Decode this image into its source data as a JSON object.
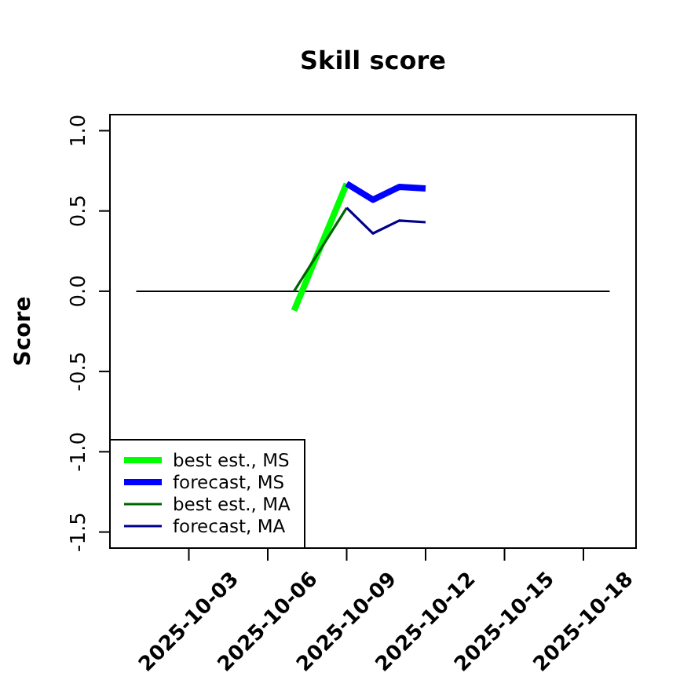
{
  "chart_data": {
    "type": "line",
    "title": "Skill score",
    "ylabel": "Score",
    "xlim": [
      "2025-09-30",
      "2025-10-20"
    ],
    "xticks": [
      "2025-10-03",
      "2025-10-06",
      "2025-10-09",
      "2025-10-12",
      "2025-10-15",
      "2025-10-18"
    ],
    "ylim": [
      -1.6,
      1.1
    ],
    "yticks": [
      {
        "value": -1.5,
        "label": "-1.5"
      },
      {
        "value": -1,
        "label": "-1.0"
      },
      {
        "value": -0.5,
        "label": "-0.5"
      },
      {
        "value": 0,
        "label": "0.0"
      },
      {
        "value": 0.5,
        "label": "0.5"
      },
      {
        "value": 1,
        "label": "1.0"
      }
    ],
    "series": [
      {
        "x": [
          "2025-10-01",
          "2025-10-19"
        ],
        "values": [
          0,
          0
        ],
        "color": "#000000"
      },
      {
        "name": "best est., MS",
        "color": "#00ff00",
        "x": [
          "2025-10-07",
          "2025-10-09"
        ],
        "values": [
          -0.12,
          0.67
        ]
      },
      {
        "name": "forecast, MS",
        "color": "#0000ff",
        "x": [
          "2025-10-09",
          "2025-10-10",
          "2025-10-11",
          "2025-10-12"
        ],
        "values": [
          0.67,
          0.57,
          0.65,
          0.64
        ]
      },
      {
        "name": "best est., MA",
        "color": "#006400",
        "x": [
          "2025-10-07",
          "2025-10-09"
        ],
        "values": [
          0,
          0.52
        ]
      },
      {
        "name": "forecast, MA",
        "color": "#00008b",
        "x": [
          "2025-10-09",
          "2025-10-10",
          "2025-10-11",
          "2025-10-12"
        ],
        "values": [
          0.52,
          0.36,
          0.44,
          0.43
        ]
      }
    ],
    "legend": "bottom left"
  }
}
